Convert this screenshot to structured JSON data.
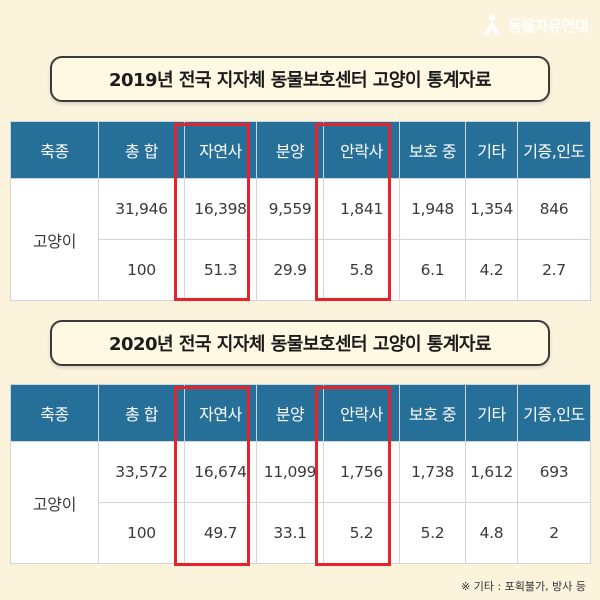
{
  "logo": {
    "text": "동물자유연대",
    "icon": "figure-logo-icon"
  },
  "tables": [
    {
      "title": "2019년 전국 지자체 동물보호센터 고양이 통계자료",
      "headers": [
        "축종",
        "총 합",
        "자연사",
        "분양",
        "안락사",
        "보호 중",
        "기타",
        "기증,인도"
      ],
      "row_label": "고양이",
      "counts": [
        "31,946",
        "16,398",
        "9,559",
        "1,841",
        "1,948",
        "1,354",
        "846"
      ],
      "percents": [
        "100",
        "51.3",
        "29.9",
        "5.8",
        "6.1",
        "4.2",
        "2.7"
      ]
    },
    {
      "title": "2020년 전국 지자체 동물보호센터 고양이 통계자료",
      "headers": [
        "축종",
        "총 합",
        "자연사",
        "분양",
        "안락사",
        "보호 중",
        "기타",
        "기증,인도"
      ],
      "row_label": "고양이",
      "counts": [
        "33,572",
        "16,674",
        "11,099",
        "1,756",
        "1,738",
        "1,612",
        "693"
      ],
      "percents": [
        "100",
        "49.7",
        "33.1",
        "5.2",
        "5.2",
        "4.8",
        "2"
      ]
    }
  ],
  "highlight_columns": [
    "자연사",
    "안락사"
  ],
  "highlight_color": "#e8222a",
  "header_color": "#266f99",
  "background_color": "#fcf3dd",
  "footnote": "※ 기타 : 포획불가, 방사 등"
}
